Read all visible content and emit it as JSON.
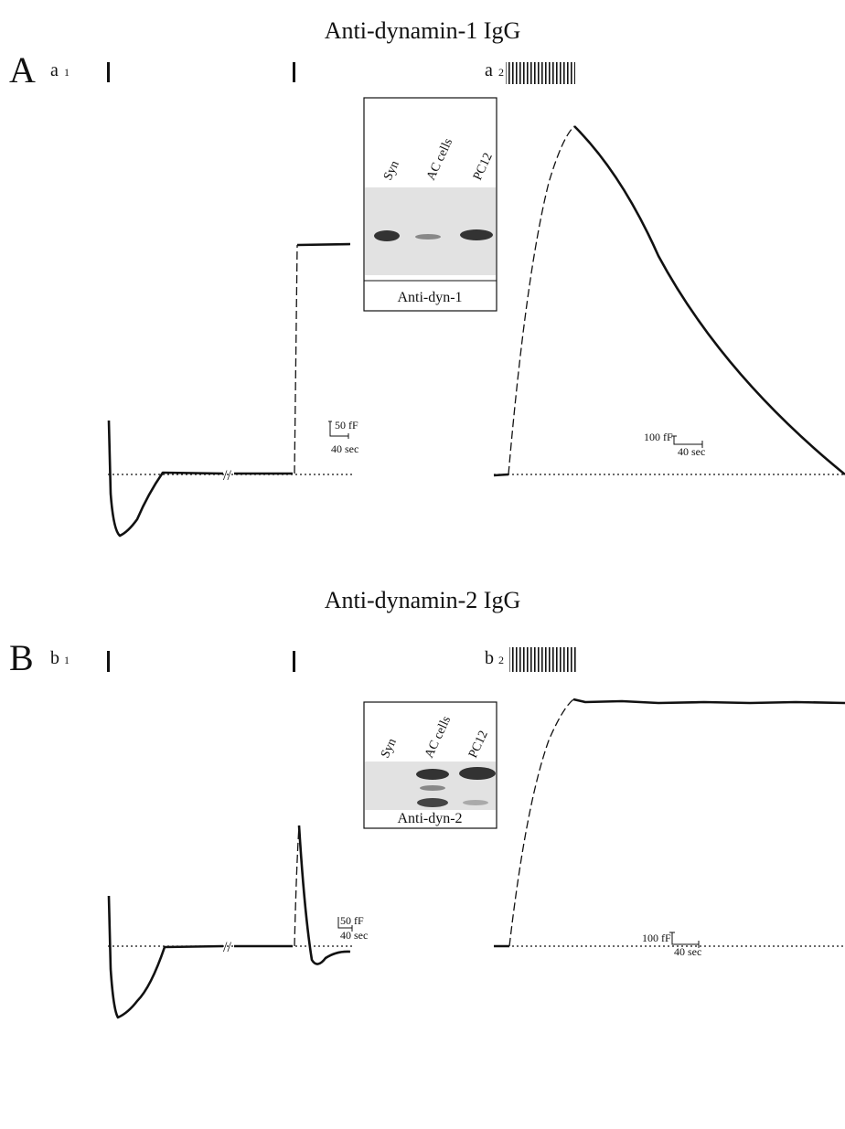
{
  "panels": [
    {
      "title": "Anti-dynamin-1 IgG",
      "letter": "A",
      "left": {
        "label": "a",
        "sub": "1",
        "scale_y": "50 fF",
        "scale_x": "40 sec"
      },
      "right": {
        "label": "a",
        "sub": "2",
        "scale_y": "100 fF",
        "scale_x": "40 sec"
      },
      "inset": {
        "lanes": [
          "Syn",
          "AC cells",
          "PC12"
        ],
        "caption": "Anti-dyn-1"
      }
    },
    {
      "title": "Anti-dynamin-2 IgG",
      "letter": "B",
      "left": {
        "label": "b",
        "sub": "1",
        "scale_y": "50 fF",
        "scale_x": "40 sec"
      },
      "right": {
        "label": "b",
        "sub": "2",
        "scale_y": "100 fF",
        "scale_x": "40 sec"
      },
      "inset": {
        "lanes": [
          "Syn",
          "AC cells",
          "PC12"
        ],
        "caption": "Anti-dyn-2"
      }
    }
  ]
}
